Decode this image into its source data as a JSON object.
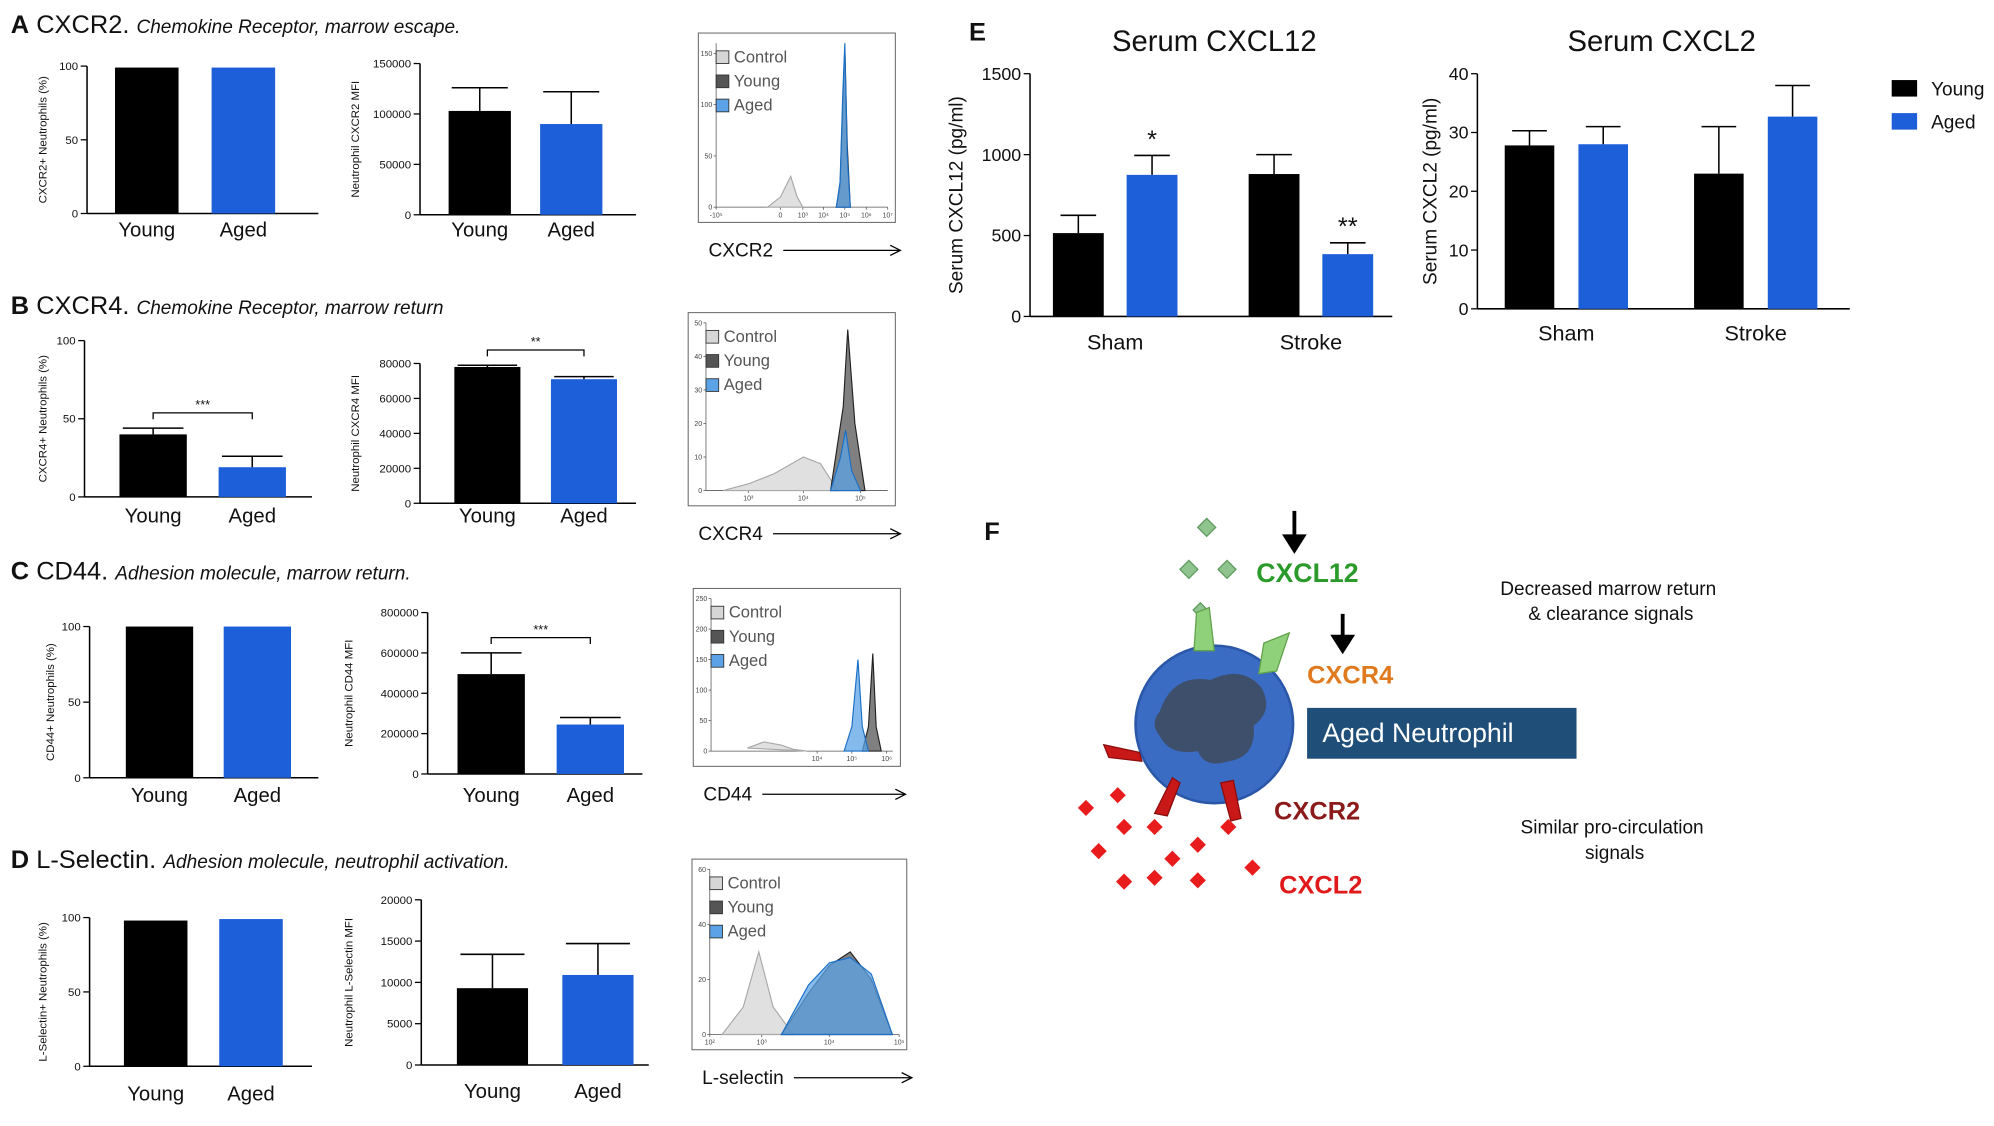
{
  "panels": [
    {
      "letter": "A",
      "title": "CXCR2.",
      "subtitle": "Chemokine Receptor, marrow escape."
    },
    {
      "letter": "B",
      "title": "CXCR4.",
      "subtitle": "Chemokine Receptor, marrow return"
    },
    {
      "letter": "C",
      "title": "CD44.",
      "subtitle": "Adhesion molecule, marrow return."
    },
    {
      "letter": "D",
      "title": "L-Selectin.",
      "subtitle": "Adhesion molecule, neutrophil activation."
    }
  ],
  "panel_e": {
    "letter": "E"
  },
  "chart_data": [
    {
      "type": "bar",
      "ylabel": "CXCR2+ Neutrophils (%)",
      "categories": [
        "Young",
        "Aged"
      ],
      "values": [
        99,
        99
      ],
      "colors": [
        "#000000",
        "#1c5fd8"
      ],
      "ylim": [
        0,
        100
      ],
      "yticks": [
        0,
        50,
        100
      ]
    },
    {
      "type": "bar",
      "ylabel": "Neutrophil CXCR2 MFI",
      "categories": [
        "Young",
        "Aged"
      ],
      "values": [
        103000,
        90000
      ],
      "errors": [
        23000,
        32000
      ],
      "colors": [
        "#000000",
        "#1c5fd8"
      ],
      "ylim": [
        0,
        150000
      ],
      "yticks": [
        0,
        50000,
        100000,
        150000
      ]
    },
    {
      "type": "density",
      "xlabel": "CXCR2",
      "legend": "upper left",
      "xlim": [
        -100000,
        10000000
      ],
      "xticks": [
        {
          "value": -100000,
          "label": "-10⁵"
        },
        0,
        {
          "value": 1000,
          "label": "10³"
        },
        {
          "value": 10000,
          "label": "10⁴"
        },
        {
          "value": 100000,
          "label": "10⁵"
        },
        {
          "value": 1000000,
          "label": "10⁶"
        },
        {
          "value": 10000000,
          "label": "10⁷"
        }
      ],
      "ylim": [
        0,
        160
      ],
      "yticks": [
        0,
        50,
        100,
        150
      ],
      "series": [
        {
          "name": "Control",
          "color": "#d6d6d6",
          "x": [
            -300,
            0,
            200,
            500,
            1000
          ],
          "values": [
            0,
            10,
            30,
            10,
            0
          ]
        },
        {
          "name": "Young",
          "color": "#555555",
          "x": [
            40000,
            60000,
            80000,
            100000,
            130000,
            180000
          ],
          "values": [
            0,
            20,
            100,
            155,
            60,
            0
          ]
        },
        {
          "name": "Aged",
          "color": "#5ba3e6",
          "x": [
            40000,
            60000,
            80000,
            100000,
            130000,
            180000
          ],
          "values": [
            0,
            25,
            110,
            160,
            50,
            0
          ]
        }
      ]
    },
    {
      "type": "bar",
      "ylabel": "CXCR4+ Neutrophils (%)",
      "categories": [
        "Young",
        "Aged"
      ],
      "values": [
        40,
        19
      ],
      "errors": [
        4,
        7
      ],
      "colors": [
        "#000000",
        "#1c5fd8"
      ],
      "ylim": [
        0,
        100
      ],
      "yticks": [
        0,
        50,
        100
      ],
      "significance": "***"
    },
    {
      "type": "bar",
      "ylabel": "Neutrophil CXCR4 MFI",
      "categories": [
        "Young",
        "Aged"
      ],
      "values": [
        78000,
        71000
      ],
      "errors": [
        1000,
        1500
      ],
      "colors": [
        "#000000",
        "#1c5fd8"
      ],
      "ylim": [
        0,
        80000
      ],
      "yticks": [
        0,
        20000,
        40000,
        60000,
        80000
      ],
      "significance": "**"
    },
    {
      "type": "density",
      "xlabel": "CXCR4",
      "legend": "upper left",
      "xlim": [
        100,
        300000
      ],
      "xticks": [
        {
          "value": 1000,
          "label": "10³"
        },
        {
          "value": 10000,
          "label": "10⁴"
        },
        {
          "value": 100000,
          "label": "10⁵"
        }
      ],
      "ylim": [
        0,
        50
      ],
      "yticks": [
        0,
        10,
        20,
        30,
        40,
        50
      ],
      "series": [
        {
          "name": "Control",
          "color": "#d6d6d6",
          "x": [
            300,
            1000,
            3000,
            10000,
            20000,
            40000
          ],
          "values": [
            0,
            2,
            5,
            10,
            8,
            0
          ]
        },
        {
          "name": "Young",
          "color": "#555555",
          "x": [
            30000,
            50000,
            60000,
            80000,
            120000
          ],
          "values": [
            0,
            25,
            48,
            20,
            0
          ]
        },
        {
          "name": "Aged",
          "color": "#5ba3e6",
          "x": [
            30000,
            45000,
            55000,
            70000,
            100000
          ],
          "values": [
            0,
            10,
            18,
            6,
            0
          ]
        }
      ]
    },
    {
      "type": "bar",
      "ylabel": "CD44+ Neutrophils (%)",
      "categories": [
        "Young",
        "Aged"
      ],
      "values": [
        100,
        100
      ],
      "colors": [
        "#000000",
        "#1c5fd8"
      ],
      "ylim": [
        0,
        100
      ],
      "yticks": [
        0,
        50,
        100
      ]
    },
    {
      "type": "bar",
      "ylabel": "Neutrophil CD44 MFI",
      "categories": [
        "Young",
        "Aged"
      ],
      "values": [
        495000,
        245000
      ],
      "errors": [
        105000,
        35000
      ],
      "colors": [
        "#000000",
        "#1c5fd8"
      ],
      "ylim": [
        0,
        800000
      ],
      "yticks": [
        0,
        200000,
        400000,
        600000,
        800000
      ],
      "significance": "***"
    },
    {
      "type": "density",
      "xlabel": "CD44",
      "legend": "upper left",
      "xlim": [
        -1000,
        1500000
      ],
      "xticks": [
        {
          "value": 10000,
          "label": "10⁴"
        },
        {
          "value": 100000,
          "label": "10⁵"
        },
        {
          "value": 1000000,
          "label": "10⁶"
        }
      ],
      "ylim": [
        0,
        250
      ],
      "yticks": [
        0,
        50,
        100,
        150,
        200,
        250
      ],
      "series": [
        {
          "name": "Control",
          "color": "#d6d6d6",
          "x": [
            0,
            200,
            800,
            2000,
            5000
          ],
          "values": [
            5,
            15,
            10,
            3,
            0
          ]
        },
        {
          "name": "Young",
          "color": "#555555",
          "x": [
            200000,
            300000,
            400000,
            500000,
            700000
          ],
          "values": [
            0,
            40,
            160,
            40,
            0
          ]
        },
        {
          "name": "Aged",
          "color": "#5ba3e6",
          "x": [
            60000,
            100000,
            150000,
            200000,
            300000
          ],
          "values": [
            0,
            40,
            150,
            40,
            0
          ]
        }
      ]
    },
    {
      "type": "bar",
      "ylabel": "L-Selectin+ Neutrophils (%)",
      "categories": [
        "Young",
        "Aged"
      ],
      "values": [
        98,
        99
      ],
      "colors": [
        "#000000",
        "#1c5fd8"
      ],
      "ylim": [
        0,
        100
      ],
      "yticks": [
        0,
        50,
        100
      ]
    },
    {
      "type": "bar",
      "ylabel": "Neutrophil L-Selectin MFI",
      "categories": [
        "Young",
        "Aged"
      ],
      "values": [
        9300,
        10900
      ],
      "errors": [
        4100,
        3800
      ],
      "colors": [
        "#000000",
        "#1c5fd8"
      ],
      "ylim": [
        0,
        20000
      ],
      "yticks": [
        0,
        5000,
        10000,
        15000,
        20000
      ]
    },
    {
      "type": "density",
      "xlabel": "L-selectin",
      "legend": "upper left",
      "xlim": [
        100,
        100000
      ],
      "xticks": [
        {
          "value": 100,
          "label": "10²"
        },
        {
          "value": 1000,
          "label": "10³"
        },
        {
          "value": 10000,
          "label": "10⁴"
        },
        {
          "value": 100000,
          "label": "10⁵"
        }
      ],
      "ylim": [
        0,
        60
      ],
      "yticks": [
        0,
        20,
        40,
        60
      ],
      "series": [
        {
          "name": "Control",
          "color": "#d6d6d6",
          "x": [
            200,
            500,
            900,
            1500,
            3000
          ],
          "values": [
            0,
            10,
            30,
            10,
            0
          ]
        },
        {
          "name": "Young",
          "color": "#555555",
          "x": [
            2000,
            5000,
            10000,
            20000,
            40000,
            80000
          ],
          "values": [
            0,
            15,
            25,
            30,
            20,
            0
          ]
        },
        {
          "name": "Aged",
          "color": "#5ba3e6",
          "x": [
            2000,
            5000,
            10000,
            20000,
            40000,
            80000
          ],
          "values": [
            0,
            18,
            26,
            28,
            22,
            0
          ]
        }
      ]
    },
    {
      "type": "grouped_bar",
      "title": "Serum CXCL12",
      "ylabel": "Serum CXCL12 (pg/ml)",
      "categories": [
        "Sham",
        "Stroke"
      ],
      "ylim": [
        0,
        1500
      ],
      "yticks": [
        0,
        500,
        1000,
        1500
      ],
      "series": [
        {
          "color": "#000000",
          "values": [
            515,
            880
          ],
          "errors": [
            110,
            120
          ]
        },
        {
          "color": "#1c5fd8",
          "values": [
            875,
            385
          ],
          "errors": [
            120,
            70
          ],
          "significance": [
            "*",
            "**"
          ]
        }
      ]
    },
    {
      "type": "grouped_bar",
      "title": "Serum CXCL2",
      "ylabel": "Serum CXCL2 (pg/ml)",
      "categories": [
        "Sham",
        "Stroke"
      ],
      "ylim": [
        0,
        40
      ],
      "yticks": [
        0,
        10,
        20,
        30,
        40
      ],
      "legend": "right",
      "series": [
        {
          "name": "Young",
          "color": "#000000",
          "values": [
            27.8,
            23
          ],
          "errors": [
            2.5,
            8
          ]
        },
        {
          "name": "Aged",
          "color": "#1c5fd8",
          "values": [
            28,
            32.7
          ],
          "errors": [
            3,
            5.3
          ]
        }
      ]
    }
  ],
  "diagram": {
    "letter": "F",
    "ligand_top": "CXCL12",
    "receptor_top": "CXCR4",
    "cell": "Aged Neutrophil",
    "receptor_bottom": "CXCR2",
    "ligand_bottom": "CXCL2",
    "note_top": [
      "Decreased marrow return",
      "& clearance signals"
    ],
    "note_bottom": [
      "Similar pro-circulation",
      "signals"
    ]
  }
}
